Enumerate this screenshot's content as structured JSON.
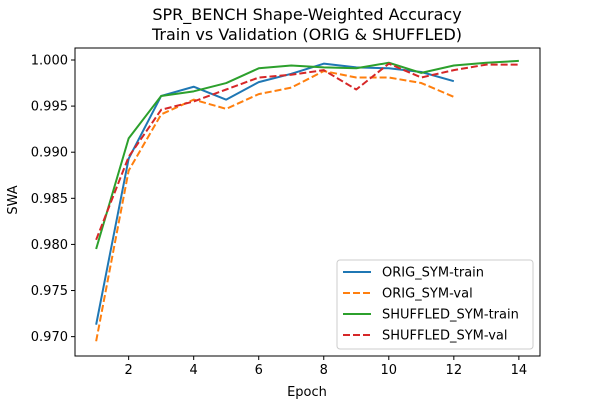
{
  "chart_data": {
    "type": "line",
    "title_lines": [
      "SPR_BENCH Shape-Weighted Accuracy",
      "Train vs Validation (ORIG & SHUFFLED)"
    ],
    "xlabel": "Epoch",
    "ylabel": "SWA",
    "xlim": [
      0.35,
      14.65
    ],
    "ylim": [
      0.9679,
      1.0013
    ],
    "xticks": [
      2,
      4,
      6,
      8,
      10,
      12,
      14
    ],
    "yticks": [
      0.97,
      0.975,
      0.98,
      0.985,
      0.99,
      0.995,
      1.0
    ],
    "ytick_labels": [
      "0.970",
      "0.975",
      "0.980",
      "0.985",
      "0.990",
      "0.995",
      "1.000"
    ],
    "grid": false,
    "legend_position": "lower-right",
    "series": [
      {
        "name": "ORIG_SYM-train",
        "color": "#1f77b4",
        "style": "solid",
        "x": [
          1,
          2,
          3,
          4,
          5,
          6,
          7,
          8,
          9,
          10,
          11,
          12
        ],
        "y": [
          0.9713,
          0.9893,
          0.9961,
          0.9971,
          0.9957,
          0.9976,
          0.9985,
          0.9996,
          0.9992,
          0.9991,
          0.9987,
          0.9977
        ]
      },
      {
        "name": "ORIG_SYM-val",
        "color": "#ff7f0e",
        "style": "dashed",
        "x": [
          1,
          2,
          3,
          4,
          5,
          6,
          7,
          8,
          9,
          10,
          11,
          12
        ],
        "y": [
          0.9695,
          0.988,
          0.9941,
          0.9957,
          0.9947,
          0.9963,
          0.997,
          0.9988,
          0.9981,
          0.9981,
          0.9975,
          0.996
        ]
      },
      {
        "name": "SHUFFLED_SYM-train",
        "color": "#2ca02c",
        "style": "solid",
        "x": [
          1,
          2,
          3,
          4,
          5,
          6,
          7,
          8,
          9,
          10,
          11,
          12,
          13,
          14
        ],
        "y": [
          0.9795,
          0.9915,
          0.9961,
          0.9966,
          0.9975,
          0.9991,
          0.9994,
          0.9992,
          0.9991,
          0.9997,
          0.9986,
          0.9994,
          0.9997,
          0.9999
        ]
      },
      {
        "name": "SHUFFLED_SYM-val",
        "color": "#d62728",
        "style": "dashed",
        "x": [
          1,
          2,
          3,
          4,
          5,
          6,
          7,
          8,
          9,
          10,
          11,
          12,
          13,
          14
        ],
        "y": [
          0.9805,
          0.9895,
          0.9946,
          0.9955,
          0.9968,
          0.9981,
          0.9984,
          0.9989,
          0.9968,
          0.9996,
          0.9981,
          0.9989,
          0.9995,
          0.9995
        ]
      }
    ]
  }
}
